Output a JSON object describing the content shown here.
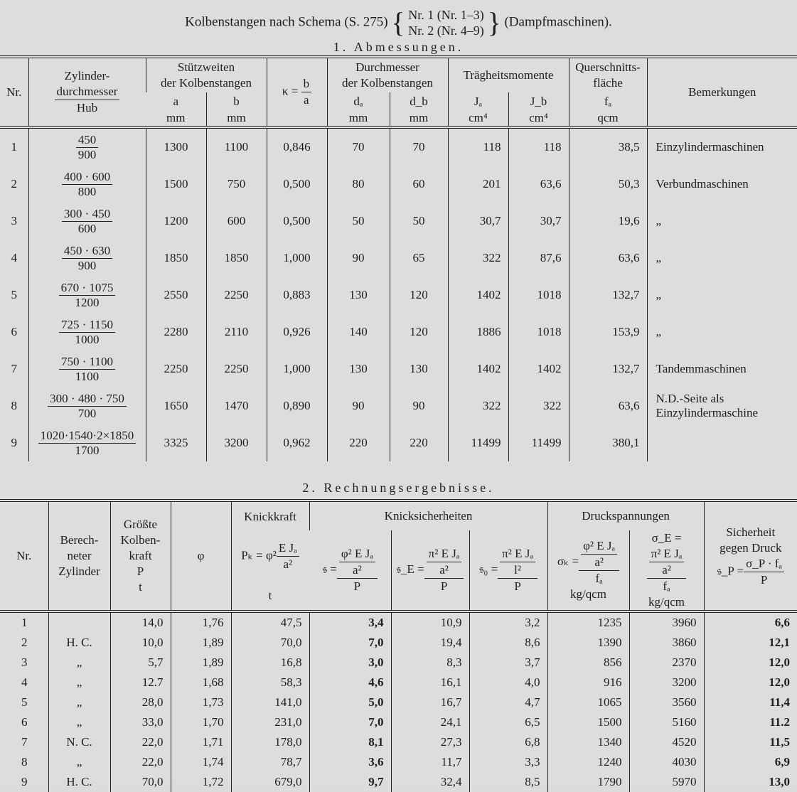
{
  "heading": {
    "prefix": "Kolbenstangen nach Schema (S. 275)",
    "line1": "Nr. 1 (Nr. 1–3)",
    "line2": "Nr. 2 (Nr. 4–9)",
    "suffix": "(Dampfmaschinen)."
  },
  "table1": {
    "title": "1. Abmessungen.",
    "headers": {
      "nr": "Nr.",
      "zyl_num": "Zylinder-",
      "zyl_num2": "durchmesser",
      "zyl_den": "Hub",
      "stuetz": "Stützweiten",
      "stuetz2": "der Kolbenstangen",
      "a": "a",
      "b": "b",
      "mm": "mm",
      "kappa_lhs": "κ =",
      "kappa_num": "b",
      "kappa_den": "a",
      "durch": "Durchmesser",
      "durch2": "der Kolbenstangen",
      "da": "dₐ",
      "db": "d_b",
      "traeg": "Trägheitsmomente",
      "ja": "Jₐ",
      "jb": "J_b",
      "cm4": "cm⁴",
      "quer": "Querschnitts-",
      "quer2": "fläche",
      "fa": "fₐ",
      "qcm": "qcm",
      "bem": "Bemerkungen"
    },
    "rows": [
      {
        "nr": "1",
        "zn": "450",
        "zd": "900",
        "a": "1300",
        "b": "1100",
        "k": "0,846",
        "da": "70",
        "db": "70",
        "ja": "118",
        "jb": "118",
        "fa": "38,5",
        "bem": "Einzylindermaschinen"
      },
      {
        "nr": "2",
        "zn": "400 · 600",
        "zd": "800",
        "a": "1500",
        "b": "750",
        "k": "0,500",
        "da": "80",
        "db": "60",
        "ja": "201",
        "jb": "63,6",
        "fa": "50,3",
        "bem": "Verbundmaschinen"
      },
      {
        "nr": "3",
        "zn": "300 · 450",
        "zd": "600",
        "a": "1200",
        "b": "600",
        "k": "0,500",
        "da": "50",
        "db": "50",
        "ja": "30,7",
        "jb": "30,7",
        "fa": "19,6",
        "bem": "„"
      },
      {
        "nr": "4",
        "zn": "450 · 630",
        "zd": "900",
        "a": "1850",
        "b": "1850",
        "k": "1,000",
        "da": "90",
        "db": "65",
        "ja": "322",
        "jb": "87,6",
        "fa": "63,6",
        "bem": "„"
      },
      {
        "nr": "5",
        "zn": "670 · 1075",
        "zd": "1200",
        "a": "2550",
        "b": "2250",
        "k": "0,883",
        "da": "130",
        "db": "120",
        "ja": "1402",
        "jb": "1018",
        "fa": "132,7",
        "bem": "„"
      },
      {
        "nr": "6",
        "zn": "725 · 1150",
        "zd": "1000",
        "a": "2280",
        "b": "2110",
        "k": "0,926",
        "da": "140",
        "db": "120",
        "ja": "1886",
        "jb": "1018",
        "fa": "153,9",
        "bem": "„"
      },
      {
        "nr": "7",
        "zn": "750 · 1100",
        "zd": "1100",
        "a": "2250",
        "b": "2250",
        "k": "1,000",
        "da": "130",
        "db": "130",
        "ja": "1402",
        "jb": "1402",
        "fa": "132,7",
        "bem": "Tandemmaschinen"
      },
      {
        "nr": "8",
        "zn": "300 · 480 · 750",
        "zd": "700",
        "a": "1650",
        "b": "1470",
        "k": "0,890",
        "da": "90",
        "db": "90",
        "ja": "322",
        "jb": "322",
        "fa": "63,6",
        "bem": "N.D.-Seite als Einzylindermaschine"
      },
      {
        "nr": "9",
        "zn": "1020·1540·2×1850",
        "zd": "1700",
        "a": "3325",
        "b": "3200",
        "k": "0,962",
        "da": "220",
        "db": "220",
        "ja": "11499",
        "jb": "11499",
        "fa": "380,1",
        "bem": ""
      }
    ]
  },
  "table2": {
    "title": "2. Rechnungsergebnisse.",
    "headers": {
      "nr": "Nr.",
      "ber": "Berech-",
      "ber2": "neter",
      "ber3": "Zylinder",
      "kk": "Größte",
      "kk2": "Kolben-",
      "kk3": "kraft",
      "kk4": "P",
      "t": "t",
      "phi": "φ",
      "knick": "Knickkraft",
      "pk_lhs": "Pₖ = φ²",
      "pk_num": "E Jₐ",
      "pk_den": "a²",
      "ks": "Knicksicherheiten",
      "s_lhs": "𝔰 =",
      "s_num_a": "φ² E Jₐ",
      "s_num_b": "a²",
      "s_den": "P",
      "se_lhs": "𝔰_E =",
      "se_num_a": "π² E Jₐ",
      "se_num_b": "a²",
      "se_den": "P",
      "s0_lhs": "𝔰₀ =",
      "s0_num_a": "π² E Jₐ",
      "s0_num_b": "l²",
      "s0_den": "P",
      "ds": "Druckspannungen",
      "sk_lhs": "σₖ =",
      "sk_num_a": "φ² E Jₐ",
      "sk_num_b": "a²",
      "sk_den": "fₐ",
      "sE_lhs": "σ_E =",
      "sE_num_a": "π² E Jₐ",
      "sE_num_b": "a²",
      "sE_den": "fₐ",
      "unit": "kg/qcm",
      "sich": "Sicherheit",
      "sich2": "gegen Druck",
      "sp_lhs": "𝔰_P =",
      "sp_num": "σ_P · fₐ",
      "sp_den": "P"
    },
    "rows": [
      {
        "nr": "1",
        "z": "",
        "p": "14,0",
        "phi": "1,76",
        "pk": "47,5",
        "s": "3,4",
        "se": "10,9",
        "s0": "3,2",
        "sk": "1235",
        "sE": "3960",
        "sp": "6,6"
      },
      {
        "nr": "2",
        "z": "H. C.",
        "p": "10,0",
        "phi": "1,89",
        "pk": "70,0",
        "s": "7,0",
        "se": "19,4",
        "s0": "8,6",
        "sk": "1390",
        "sE": "3860",
        "sp": "12,1"
      },
      {
        "nr": "3",
        "z": "„",
        "p": "5,7",
        "phi": "1,89",
        "pk": "16,8",
        "s": "3,0",
        "se": "8,3",
        "s0": "3,7",
        "sk": "856",
        "sE": "2370",
        "sp": "12,0"
      },
      {
        "nr": "4",
        "z": "„",
        "p": "12.7",
        "phi": "1,68",
        "pk": "58,3",
        "s": "4,6",
        "se": "16,1",
        "s0": "4,0",
        "sk": "916",
        "sE": "3200",
        "sp": "12,0"
      },
      {
        "nr": "5",
        "z": "„",
        "p": "28,0",
        "phi": "1,73",
        "pk": "141,0",
        "s": "5,0",
        "se": "16,7",
        "s0": "4,7",
        "sk": "1065",
        "sE": "3560",
        "sp": "11,4"
      },
      {
        "nr": "6",
        "z": "„",
        "p": "33,0",
        "phi": "1,70",
        "pk": "231,0",
        "s": "7,0",
        "se": "24,1",
        "s0": "6,5",
        "sk": "1500",
        "sE": "5160",
        "sp": "11.2"
      },
      {
        "nr": "7",
        "z": "N. C.",
        "p": "22,0",
        "phi": "1,71",
        "pk": "178,0",
        "s": "8,1",
        "se": "27,3",
        "s0": "6,8",
        "sk": "1340",
        "sE": "4520",
        "sp": "11,5"
      },
      {
        "nr": "8",
        "z": "„",
        "p": "22,0",
        "phi": "1,74",
        "pk": "78,7",
        "s": "3,6",
        "se": "11,7",
        "s0": "3,3",
        "sk": "1240",
        "sE": "4030",
        "sp": "6,9"
      },
      {
        "nr": "9",
        "z": "H. C.",
        "p": "70,0",
        "phi": "1,72",
        "pk": "679,0",
        "s": "9,7",
        "se": "32,4",
        "s0": "8,5",
        "sk": "1790",
        "sE": "5970",
        "sp": "13,0"
      }
    ]
  }
}
